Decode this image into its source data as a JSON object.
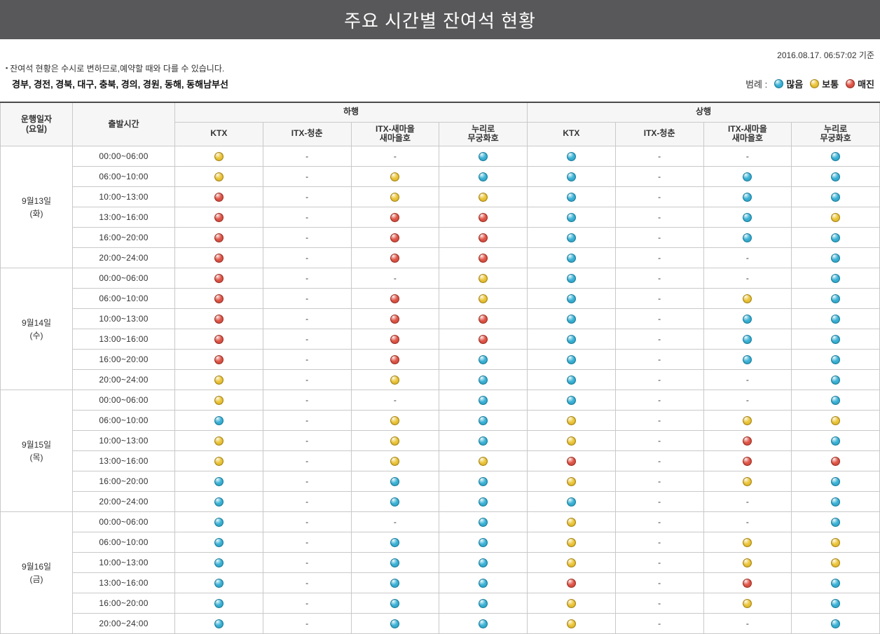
{
  "title": "주요 시간별 잔여석 현황",
  "timestamp": "2016.08.17.  06:57:02 기준",
  "notice": {
    "bullet": "▪",
    "line1": "잔여석 현황은 수시로 변하므로,예약할 때와 다를 수 있습니다.",
    "line2": "경부, 경전, 경북, 대구, 충북, 경의, 경원, 동해, 동해남부선"
  },
  "legend": {
    "label": "범례 :",
    "items": [
      {
        "code": "B",
        "name": "many",
        "label": "많음",
        "color": "#3cb4d8",
        "dark": "#177e9e"
      },
      {
        "code": "Y",
        "name": "normal",
        "label": "보통",
        "color": "#eec73a",
        "dark": "#a88512"
      },
      {
        "code": "R",
        "name": "soldout",
        "label": "매진",
        "color": "#e25749",
        "dark": "#9e2d22"
      }
    ]
  },
  "table": {
    "headers": {
      "date": [
        "운행일자",
        "(요일)"
      ],
      "time": "출발시간",
      "down": "하행",
      "up": "상행",
      "trains": [
        [
          "KTX"
        ],
        [
          "ITX-청춘"
        ],
        [
          "ITX-새마을",
          "새마을호"
        ],
        [
          "누리로",
          "무궁화호"
        ]
      ]
    },
    "time_slots": [
      "00:00~06:00",
      "06:00~10:00",
      "10:00~13:00",
      "13:00~16:00",
      "16:00~20:00",
      "20:00~24:00"
    ],
    "groups": [
      {
        "date": "9월13일",
        "day": "(화)",
        "rows": [
          [
            "Y",
            "-",
            "-",
            "B",
            "B",
            "-",
            "-",
            "B"
          ],
          [
            "Y",
            "-",
            "Y",
            "B",
            "B",
            "-",
            "B",
            "B"
          ],
          [
            "R",
            "-",
            "Y",
            "Y",
            "B",
            "-",
            "B",
            "B"
          ],
          [
            "R",
            "-",
            "R",
            "R",
            "B",
            "-",
            "B",
            "Y"
          ],
          [
            "R",
            "-",
            "R",
            "R",
            "B",
            "-",
            "B",
            "B"
          ],
          [
            "R",
            "-",
            "R",
            "R",
            "B",
            "-",
            "-",
            "B"
          ]
        ]
      },
      {
        "date": "9월14일",
        "day": "(수)",
        "rows": [
          [
            "R",
            "-",
            "-",
            "Y",
            "B",
            "-",
            "-",
            "B"
          ],
          [
            "R",
            "-",
            "R",
            "Y",
            "B",
            "-",
            "Y",
            "B"
          ],
          [
            "R",
            "-",
            "R",
            "R",
            "B",
            "-",
            "B",
            "B"
          ],
          [
            "R",
            "-",
            "R",
            "R",
            "B",
            "-",
            "B",
            "B"
          ],
          [
            "R",
            "-",
            "R",
            "B",
            "B",
            "-",
            "B",
            "B"
          ],
          [
            "Y",
            "-",
            "Y",
            "B",
            "B",
            "-",
            "-",
            "B"
          ]
        ]
      },
      {
        "date": "9월15일",
        "day": "(목)",
        "rows": [
          [
            "Y",
            "-",
            "-",
            "B",
            "B",
            "-",
            "-",
            "B"
          ],
          [
            "B",
            "-",
            "Y",
            "B",
            "Y",
            "-",
            "Y",
            "Y"
          ],
          [
            "Y",
            "-",
            "Y",
            "B",
            "Y",
            "-",
            "R",
            "B"
          ],
          [
            "Y",
            "-",
            "Y",
            "Y",
            "R",
            "-",
            "R",
            "R"
          ],
          [
            "B",
            "-",
            "B",
            "B",
            "Y",
            "-",
            "Y",
            "B"
          ],
          [
            "B",
            "-",
            "B",
            "B",
            "B",
            "-",
            "-",
            "B"
          ]
        ]
      },
      {
        "date": "9월16일",
        "day": "(금)",
        "rows": [
          [
            "B",
            "-",
            "-",
            "B",
            "Y",
            "-",
            "-",
            "B"
          ],
          [
            "B",
            "-",
            "B",
            "B",
            "Y",
            "-",
            "Y",
            "Y"
          ],
          [
            "B",
            "-",
            "B",
            "B",
            "Y",
            "-",
            "Y",
            "Y"
          ],
          [
            "B",
            "-",
            "B",
            "B",
            "R",
            "-",
            "R",
            "B"
          ],
          [
            "B",
            "-",
            "B",
            "B",
            "Y",
            "-",
            "Y",
            "B"
          ],
          [
            "B",
            "-",
            "B",
            "B",
            "Y",
            "-",
            "-",
            "B"
          ]
        ]
      }
    ]
  }
}
